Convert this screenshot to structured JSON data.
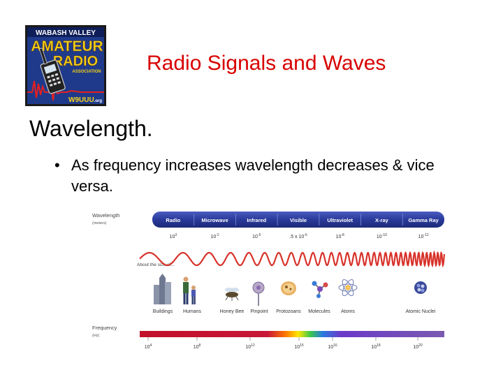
{
  "logo": {
    "line1": "WABASH VALLEY",
    "line2": "AMATEUR",
    "line3": "RADIO",
    "line4": "ASSOCIATION",
    "callsign": "W9UUU",
    "callsign_suffix": ".org"
  },
  "slide": {
    "title": "Radio Signals and Waves",
    "heading": "Wavelength.",
    "bullet_symbol": "•",
    "bullet": "As frequency increases wavelength decreases & vice versa."
  },
  "spectrum": {
    "wavelength_label": "Wavelength",
    "wavelength_unit": "(meters)",
    "bands": [
      "Radio",
      "Microwave",
      "Infrared",
      "Visible",
      "Ultraviolet",
      "X-ray",
      "Gamma Ray"
    ],
    "wavelength_values": [
      {
        "base": "10",
        "exp": "3"
      },
      {
        "base": "10",
        "exp": "-2"
      },
      {
        "base": "10",
        "exp": "-5"
      },
      {
        "base": ".5 x 10",
        "exp": "-6"
      },
      {
        "base": "10",
        "exp": "-8"
      },
      {
        "base": "10",
        "exp": "-10"
      },
      {
        "base": "10",
        "exp": "-12"
      }
    ],
    "size_label": "About the size of...",
    "objects": [
      "Buildings",
      "Humans",
      "Honey Bee",
      "Pinpoint",
      "Protozoans",
      "Molecules",
      "Atoms",
      "Atomic Nuclei"
    ],
    "frequency_label": "Frequency",
    "frequency_unit": "(Hz)",
    "frequency_values": [
      {
        "base": "10",
        "exp": "4"
      },
      {
        "base": "10",
        "exp": "8"
      },
      {
        "base": "10",
        "exp": "12"
      },
      {
        "base": "10",
        "exp": "15"
      },
      {
        "base": "10",
        "exp": "16"
      },
      {
        "base": "10",
        "exp": "18"
      },
      {
        "base": "10",
        "exp": "20"
      }
    ],
    "colors": {
      "band_bar": "#2b3e9c",
      "wave": "#d8322a"
    }
  }
}
